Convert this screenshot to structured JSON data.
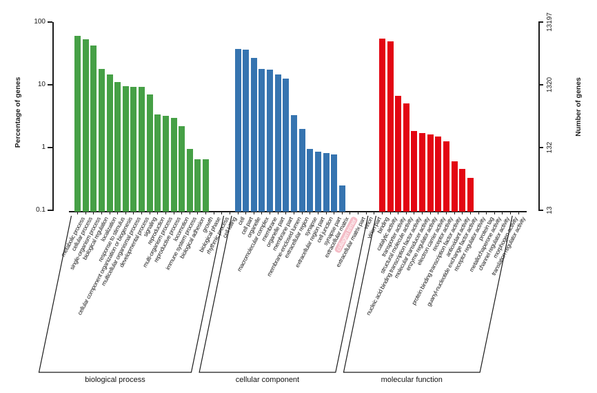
{
  "chart_data": {
    "type": "bar",
    "y_scale": "log",
    "left_axis": {
      "label": "Percentage of genes",
      "tick_labels": [
        "100",
        "10",
        "1",
        "0.1"
      ],
      "tick_values": [
        100,
        10,
        1,
        0.1
      ],
      "range": [
        0.1,
        100
      ]
    },
    "right_axis": {
      "label": "Number of genes",
      "tick_labels": [
        "13197",
        "1320",
        "132",
        "13"
      ],
      "tick_values": [
        13197,
        1320,
        132,
        13
      ]
    },
    "legend_position": "none",
    "grid": false,
    "highlight_color": "#F4BDC7",
    "groups": [
      {
        "name": "biological process",
        "color": "#46A046",
        "items": [
          {
            "label": "metabolic process",
            "percent": 61
          },
          {
            "label": "cellular process",
            "percent": 53
          },
          {
            "label": "single-organism process",
            "percent": 42
          },
          {
            "label": "biological regulation",
            "percent": 18
          },
          {
            "label": "localization",
            "percent": 14.5
          },
          {
            "label": "response to stimulus",
            "percent": 11
          },
          {
            "label": "cellular component organization or biogenesis",
            "percent": 9.6
          },
          {
            "label": "multicellular organismal process",
            "percent": 9.3
          },
          {
            "label": "developmental process",
            "percent": 9.2
          },
          {
            "label": "signaling",
            "percent": 7
          },
          {
            "label": "reproduction",
            "percent": 3.4
          },
          {
            "label": "multi-organism process",
            "percent": 3.2
          },
          {
            "label": "reproductive process",
            "percent": 3.0
          },
          {
            "label": "locomotion",
            "percent": 2.2
          },
          {
            "label": "immune system process",
            "percent": 0.95
          },
          {
            "label": "biological adhesion",
            "percent": 0.65
          },
          {
            "label": "growth",
            "percent": 0.65
          },
          {
            "label": "biological phase",
            "percent": null
          },
          {
            "label": "rhythmic process",
            "percent": null
          },
          {
            "label": "cell killing",
            "percent": null
          }
        ]
      },
      {
        "name": "cellular component",
        "color": "#3674B0",
        "items": [
          {
            "label": "cell",
            "percent": 37
          },
          {
            "label": "cell part",
            "percent": 36.5
          },
          {
            "label": "organelle",
            "percent": 27
          },
          {
            "label": "macromolecular complex",
            "percent": 18
          },
          {
            "label": "membrane",
            "percent": 17.5
          },
          {
            "label": "organelle part",
            "percent": 14.5
          },
          {
            "label": "membrane part",
            "percent": 12.5
          },
          {
            "label": "membrane-enclosed lumen",
            "percent": 3.3
          },
          {
            "label": "extracellular region",
            "percent": 2.0
          },
          {
            "label": "synapse",
            "percent": 0.95
          },
          {
            "label": "extracellular region part",
            "percent": 0.85
          },
          {
            "label": "cell junction",
            "percent": 0.82
          },
          {
            "label": "synapse part",
            "percent": 0.78
          },
          {
            "label": "extracellular matrix",
            "percent": 0.25
          },
          {
            "label": "collagen trimer",
            "percent": null,
            "highlight": true
          },
          {
            "label": "extracellular matrix part",
            "percent": null
          },
          {
            "label": "virion",
            "percent": null
          },
          {
            "label": "virion part",
            "percent": null
          }
        ]
      },
      {
        "name": "molecular function",
        "color": "#E30613",
        "items": [
          {
            "label": "binding",
            "percent": 54
          },
          {
            "label": "catalytic activity",
            "percent": 49
          },
          {
            "label": "transporter activity",
            "percent": 6.6
          },
          {
            "label": "structural molecule activity",
            "percent": 5.1
          },
          {
            "label": "nucleic acid binding transcription factor activity",
            "percent": 1.85
          },
          {
            "label": "molecular transducer activity",
            "percent": 1.7
          },
          {
            "label": "enzyme regulator activity",
            "percent": 1.6
          },
          {
            "label": "electron carrier activity",
            "percent": 1.5
          },
          {
            "label": "receptor activity",
            "percent": 1.25
          },
          {
            "label": "protein binding transcription factor activity",
            "percent": 0.6
          },
          {
            "label": "antioxidant activity",
            "percent": 0.46
          },
          {
            "label": "guanyl-nucleotide exchange factor activity",
            "percent": 0.33
          },
          {
            "label": "receptor regulator activity",
            "percent": null
          },
          {
            "label": "protein tag",
            "percent": null
          },
          {
            "label": "metallochaperone activity",
            "percent": null
          },
          {
            "label": "channel regulator activity",
            "percent": null
          },
          {
            "label": "morphogen activity",
            "percent": null
          },
          {
            "label": "translation regulator activity",
            "percent": null
          }
        ]
      }
    ]
  }
}
